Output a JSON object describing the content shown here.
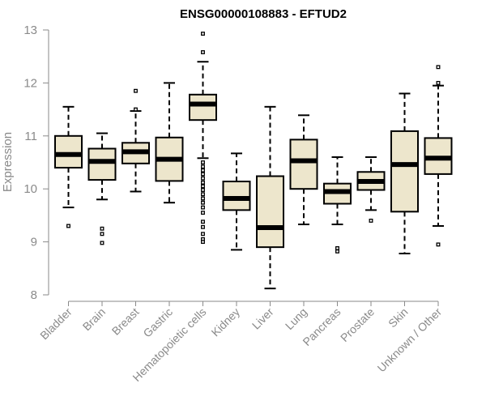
{
  "chart_data": {
    "type": "boxplot",
    "title": "ENSG00000108883 - EFTUD2",
    "xlabel": "",
    "ylabel": "Expression",
    "ylim": [
      8,
      13
    ],
    "yticks": [
      8,
      9,
      10,
      11,
      12,
      13
    ],
    "grid": false,
    "legend": "none",
    "colors": {
      "box_fill": "#ede6cc",
      "stroke": "#000000",
      "axis": "#8a8a8a"
    },
    "categories": [
      "Bladder",
      "Brain",
      "Breast",
      "Gastric",
      "Hematopoietic cells",
      "Kidney",
      "Liver",
      "Lung",
      "Pancreas",
      "Prostate",
      "Skin",
      "Unknown / Other"
    ],
    "boxes": [
      {
        "category": "Bladder",
        "whisker_low": 9.65,
        "q1": 10.4,
        "median": 10.65,
        "q3": 11.0,
        "whisker_high": 11.55,
        "outliers": [
          9.3
        ]
      },
      {
        "category": "Brain",
        "whisker_low": 9.8,
        "q1": 10.17,
        "median": 10.52,
        "q3": 10.76,
        "whisker_high": 11.05,
        "outliers": [
          9.25,
          9.15,
          8.98
        ]
      },
      {
        "category": "Breast",
        "whisker_low": 9.95,
        "q1": 10.48,
        "median": 10.7,
        "q3": 10.87,
        "whisker_high": 11.47,
        "outliers": [
          11.85,
          11.5
        ]
      },
      {
        "category": "Gastric",
        "whisker_low": 9.74,
        "q1": 10.15,
        "median": 10.56,
        "q3": 10.97,
        "whisker_high": 12.0,
        "outliers": []
      },
      {
        "category": "Hematopoietic cells",
        "whisker_low": 10.58,
        "q1": 11.3,
        "median": 11.6,
        "q3": 11.78,
        "whisker_high": 12.4,
        "outliers": [
          12.93,
          12.58,
          10.5,
          10.42,
          10.35,
          10.28,
          10.2,
          10.12,
          10.05,
          9.98,
          9.9,
          9.82,
          9.74,
          9.65,
          9.55,
          9.38,
          9.28,
          9.15,
          9.05,
          9.0
        ]
      },
      {
        "category": "Kidney",
        "whisker_low": 8.85,
        "q1": 9.6,
        "median": 9.82,
        "q3": 10.14,
        "whisker_high": 10.67,
        "outliers": []
      },
      {
        "category": "Liver",
        "whisker_low": 8.12,
        "q1": 8.9,
        "median": 9.27,
        "q3": 10.24,
        "whisker_high": 11.55,
        "outliers": []
      },
      {
        "category": "Lung",
        "whisker_low": 9.33,
        "q1": 10.0,
        "median": 10.53,
        "q3": 10.93,
        "whisker_high": 11.39,
        "outliers": []
      },
      {
        "category": "Pancreas",
        "whisker_low": 9.33,
        "q1": 9.72,
        "median": 9.95,
        "q3": 10.1,
        "whisker_high": 10.6,
        "outliers": [
          8.88,
          8.82
        ]
      },
      {
        "category": "Prostate",
        "whisker_low": 9.6,
        "q1": 9.98,
        "median": 10.14,
        "q3": 10.32,
        "whisker_high": 10.6,
        "outliers": [
          9.4
        ]
      },
      {
        "category": "Skin",
        "whisker_low": 8.78,
        "q1": 9.57,
        "median": 10.46,
        "q3": 11.09,
        "whisker_high": 11.8,
        "outliers": []
      },
      {
        "category": "Unknown / Other",
        "whisker_low": 9.3,
        "q1": 10.28,
        "median": 10.58,
        "q3": 10.96,
        "whisker_high": 11.95,
        "outliers": [
          12.3,
          12.0,
          8.95
        ]
      }
    ]
  }
}
